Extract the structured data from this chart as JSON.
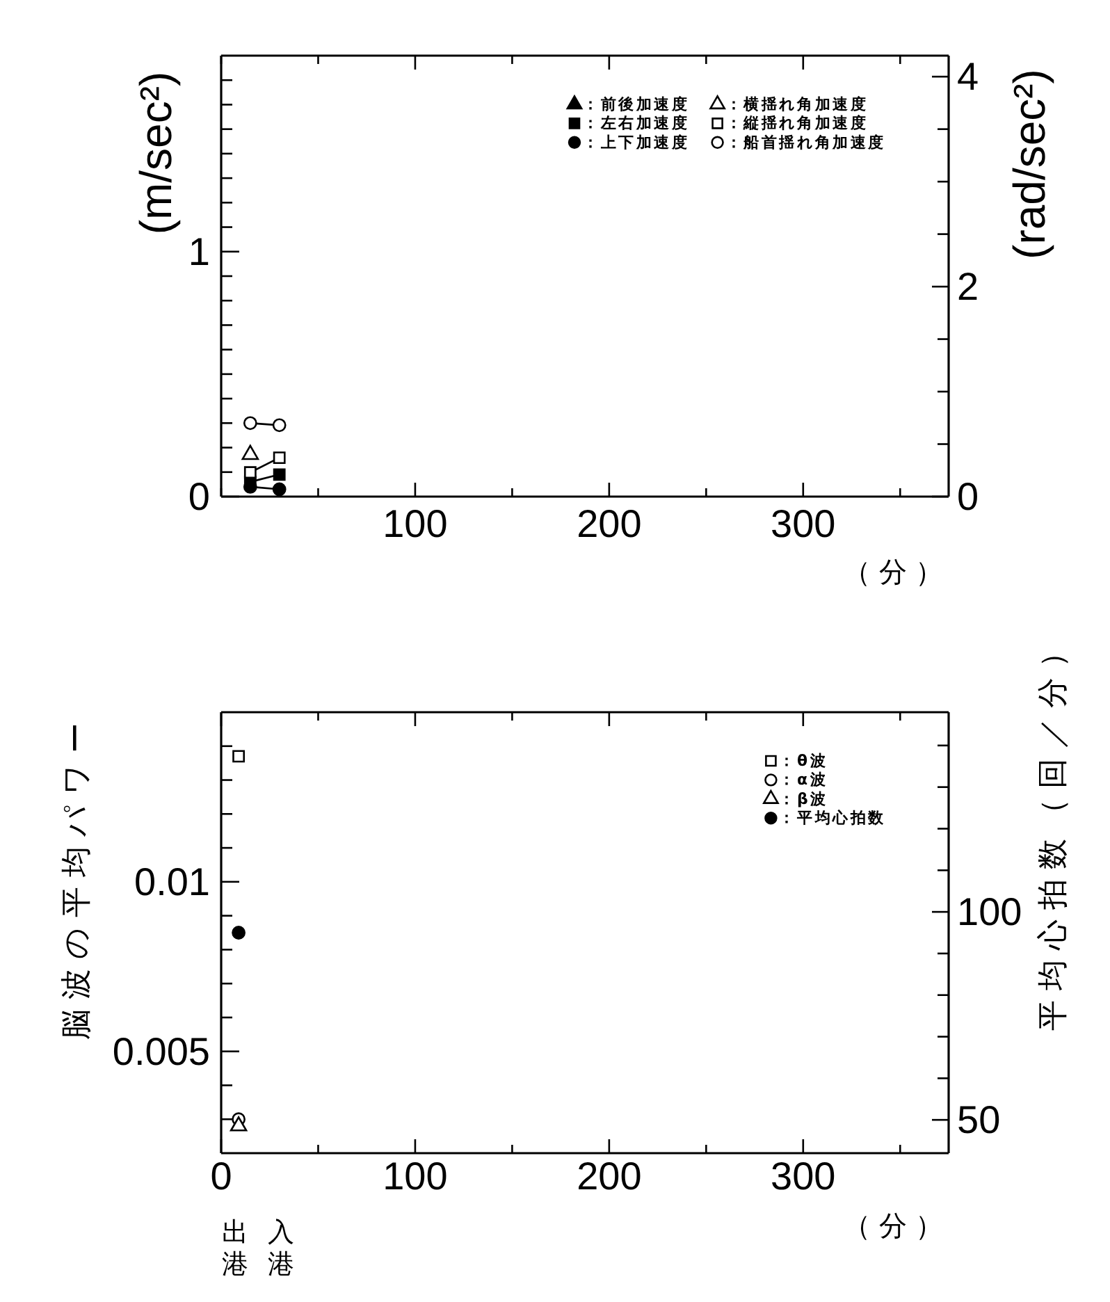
{
  "chart_data": [
    {
      "type": "line",
      "xlabel": "（分）",
      "ylabel": "(m/sec²)",
      "y2label": "(rad/sec²)",
      "x": [
        15,
        30
      ],
      "series": [
        {
          "name": "：前後加速度",
          "color": "#000000",
          "marker": "triangle",
          "values": [
            null,
            null
          ]
        },
        {
          "name": "：左右加速度",
          "color": "#000000",
          "marker": "square",
          "values": [
            0.06,
            0.09
          ]
        },
        {
          "name": "：上下加速度",
          "color": "#000000",
          "marker": "circle",
          "values": [
            0.04,
            0.03
          ]
        },
        {
          "name": "：横揺れ角加速度",
          "color": "#ffffff",
          "marker": "triangle",
          "axis": "y2",
          "values": [
            0.4,
            null
          ]
        },
        {
          "name": "：縦揺れ角加速度",
          "color": "#ffffff",
          "marker": "square",
          "axis": "y2",
          "values": [
            0.23,
            0.37
          ]
        },
        {
          "name": "：船首揺れ角加速度",
          "color": "#ffffff",
          "marker": "circle",
          "axis": "y2",
          "values": [
            0.7,
            0.68
          ]
        }
      ],
      "xlim": [
        0,
        375
      ],
      "xticks": [
        {
          "value": 0,
          "label": null
        },
        {
          "value": 50,
          "label": null
        },
        100,
        {
          "value": 150,
          "label": null
        },
        200,
        {
          "value": 250,
          "label": null
        },
        300,
        {
          "value": 350,
          "label": null
        }
      ],
      "ylim": [
        0,
        1.8
      ],
      "yticks": [
        0,
        {
          "value": 0.1,
          "label": null
        },
        {
          "value": 0.2,
          "label": null
        },
        {
          "value": 0.3,
          "label": null
        },
        {
          "value": 0.4,
          "label": null
        },
        {
          "value": 0.5,
          "label": null
        },
        {
          "value": 0.6,
          "label": null
        },
        {
          "value": 0.7,
          "label": null
        },
        {
          "value": 0.8,
          "label": null
        },
        {
          "value": 0.9,
          "label": null
        },
        1,
        {
          "value": 1.1,
          "label": null
        },
        {
          "value": 1.2,
          "label": null
        },
        {
          "value": 1.3,
          "label": null
        },
        {
          "value": 1.4,
          "label": null
        },
        {
          "value": 1.5,
          "label": null
        },
        {
          "value": 1.6,
          "label": null
        },
        {
          "value": 1.7,
          "label": null
        }
      ],
      "y2lim": [
        0,
        4.2
      ],
      "y2ticks": [
        0,
        {
          "value": 0.5,
          "label": null
        },
        {
          "value": 1,
          "label": null
        },
        {
          "value": 1.5,
          "label": null
        },
        2,
        {
          "value": 2.5,
          "label": null
        },
        {
          "value": 3,
          "label": null
        },
        {
          "value": 3.5,
          "label": null
        },
        4
      ],
      "legend": "top right",
      "grid": false,
      "line_style": "solid"
    },
    {
      "type": "scatter",
      "xlabel": "（分）",
      "ylabel": "脳波の平均パワー",
      "y2label": "平均心拍数（回／分）",
      "x": [
        9
      ],
      "series": [
        {
          "name": "：θ波",
          "color": "#ffffff",
          "marker": "square",
          "values": [
            0.0137
          ]
        },
        {
          "name": "：α波",
          "color": "#ffffff",
          "marker": "circle",
          "values": [
            0.003
          ]
        },
        {
          "name": "：β波",
          "color": "#ffffff",
          "marker": "triangle",
          "values": [
            0.0028
          ]
        },
        {
          "name": "：平均心拍数",
          "color": "#000000",
          "marker": "circle",
          "axis": "y2",
          "values": [
            95
          ]
        }
      ],
      "xlim": [
        0,
        375
      ],
      "xticks": [
        0,
        {
          "value": 50,
          "label": null
        },
        100,
        {
          "value": 150,
          "label": null
        },
        200,
        {
          "value": 250,
          "label": null
        },
        300,
        {
          "value": 350,
          "label": null
        }
      ],
      "ylim": [
        0.002,
        0.015
      ],
      "yticks": [
        {
          "value": 0.003,
          "label": null
        },
        {
          "value": 0.004,
          "label": null
        },
        0.005,
        {
          "value": 0.006,
          "label": null
        },
        {
          "value": 0.007,
          "label": null
        },
        {
          "value": 0.008,
          "label": null
        },
        {
          "value": 0.009,
          "label": null
        },
        0.01,
        {
          "value": 0.011,
          "label": null
        },
        {
          "value": 0.012,
          "label": null
        },
        {
          "value": 0.013,
          "label": null
        },
        {
          "value": 0.014,
          "label": null
        }
      ],
      "y2lim": [
        42,
        148
      ],
      "y2ticks": [
        50,
        {
          "value": 60,
          "label": null
        },
        {
          "value": 70,
          "label": null
        },
        {
          "value": 80,
          "label": null
        },
        {
          "value": 90,
          "label": null
        },
        100,
        {
          "value": 110,
          "label": null
        },
        {
          "value": 120,
          "label": null
        },
        {
          "value": 130,
          "label": null
        },
        {
          "value": 140,
          "label": null
        }
      ],
      "annotations": [
        "出港",
        "入港"
      ],
      "legend": "top right",
      "grid": false
    }
  ]
}
